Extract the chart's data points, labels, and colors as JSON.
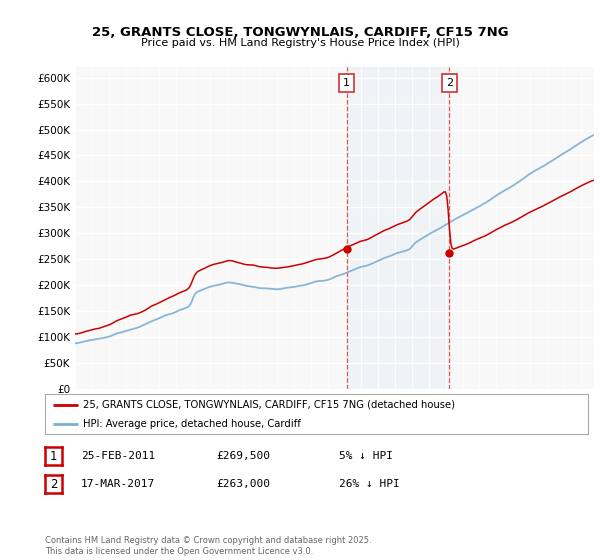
{
  "title_line1": "25, GRANTS CLOSE, TONGWYNLAIS, CARDIFF, CF15 7NG",
  "title_line2": "Price paid vs. HM Land Registry's House Price Index (HPI)",
  "ylim": [
    0,
    620000
  ],
  "yticks": [
    0,
    50000,
    100000,
    150000,
    200000,
    250000,
    300000,
    350000,
    400000,
    450000,
    500000,
    550000,
    600000
  ],
  "x_start_year": 1995,
  "x_end_year": 2025,
  "hpi_color": "#7bafd4",
  "price_color": "#cc0000",
  "hpi_fill_alpha": 0.12,
  "band_color": "#ccddf0",
  "year1": 2011.12,
  "year2": 2017.21,
  "price1": 269500,
  "price2": 263000,
  "legend_price_label": "25, GRANTS CLOSE, TONGWYNLAIS, CARDIFF, CF15 7NG (detached house)",
  "legend_hpi_label": "HPI: Average price, detached house, Cardiff",
  "footnote": "Contains HM Land Registry data © Crown copyright and database right 2025.\nThis data is licensed under the Open Government Licence v3.0.",
  "table_rows": [
    {
      "num": "1",
      "date": "25-FEB-2011",
      "price": "£269,500",
      "pct": "5% ↓ HPI"
    },
    {
      "num": "2",
      "date": "17-MAR-2017",
      "price": "£263,000",
      "pct": "26% ↓ HPI"
    }
  ]
}
